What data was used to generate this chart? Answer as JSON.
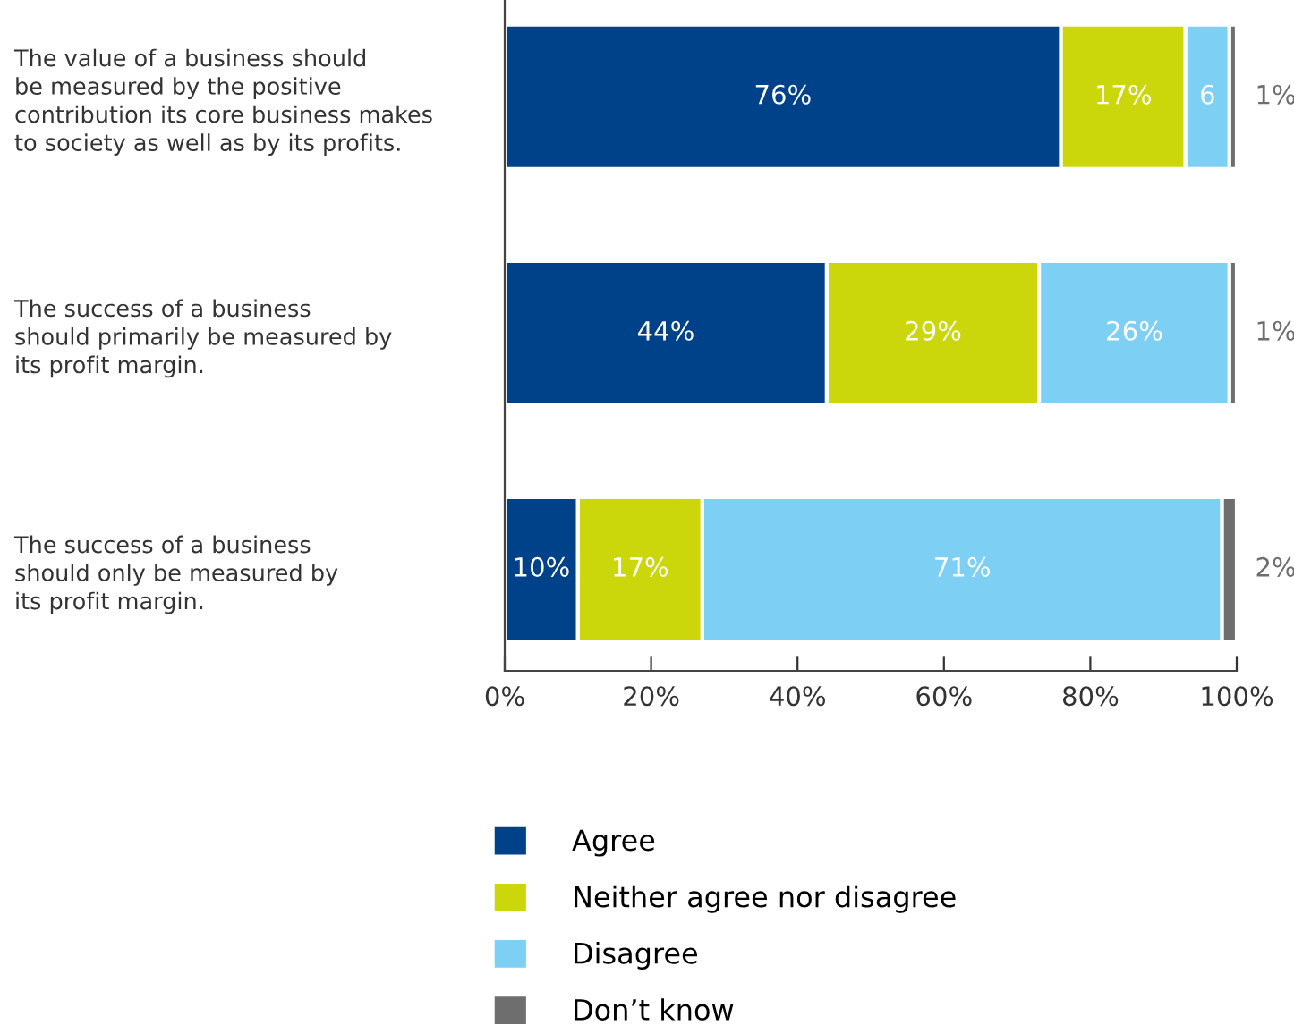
{
  "chart_data": {
    "type": "bar",
    "orientation": "horizontal",
    "stacked": true,
    "categories": [
      "The value of a business should\nbe measured by the positive\ncontribution its core business makes\nto society as well as by its profits.",
      "The success of a business\nshould primarily be measured by\nits profit margin.",
      "The success of a business\nshould only be measured by\nits profit margin."
    ],
    "series": [
      {
        "name": "Agree",
        "color": "#00428a",
        "values": [
          76,
          44,
          10
        ],
        "value_labels": [
          "76%",
          "44%",
          "10%"
        ]
      },
      {
        "name": "Neither agree nor disagree",
        "color": "#cbd70a",
        "values": [
          17,
          29,
          17
        ],
        "value_labels": [
          "17%",
          "29%",
          "17%"
        ]
      },
      {
        "name": "Disagree",
        "color": "#7dcff3",
        "values": [
          6,
          26,
          71
        ],
        "value_labels": [
          "6",
          "26%",
          "71%"
        ]
      },
      {
        "name": "Don’t know",
        "color": "#6e6e6e",
        "values": [
          1,
          1,
          2
        ],
        "value_labels": [
          "1%",
          "1%",
          "2%"
        ]
      }
    ],
    "xlim": [
      0,
      100
    ],
    "xticks": [
      {
        "value": 0,
        "label": "0%"
      },
      {
        "value": 20,
        "label": "20%"
      },
      {
        "value": 40,
        "label": "40%"
      },
      {
        "value": 60,
        "label": "60%"
      },
      {
        "value": 80,
        "label": "80%"
      },
      {
        "value": 100,
        "label": "100%"
      }
    ],
    "grid": false,
    "legend": "bottom"
  }
}
